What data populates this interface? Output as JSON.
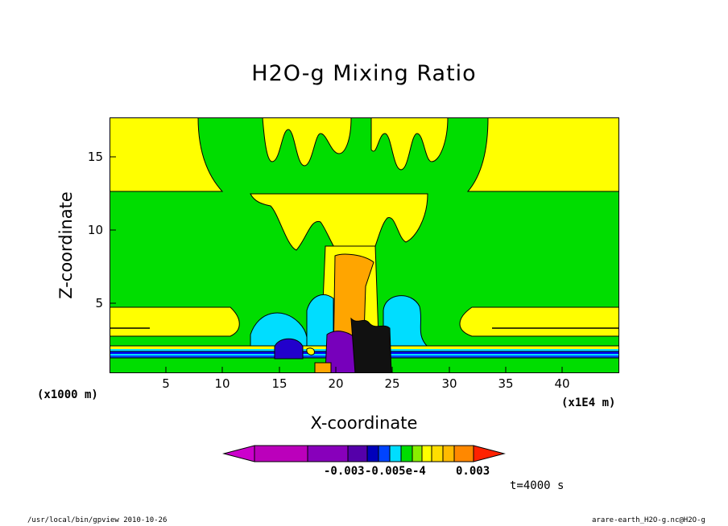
{
  "chart_data": {
    "type": "heatmap",
    "title": "H2O-g Mixing Ratio",
    "xlabel": "X-coordinate",
    "ylabel": "Z-coordinate",
    "x_unit": "(x1E4 m)",
    "y_unit": "(x1000 m)",
    "x_ticks": [
      5,
      10,
      15,
      20,
      25,
      30,
      35,
      40
    ],
    "y_ticks": [
      5,
      10,
      15
    ],
    "xlim": [
      0,
      45
    ],
    "ylim": [
      0.3,
      17.6
    ],
    "colorbar_labels": [
      "-0.003",
      "-0.005e-4",
      "0.003"
    ],
    "time_label": "t=4000 s"
  },
  "colors": {
    "green": "#00dd00",
    "yellow": "#ffff00",
    "orange": "#ffa500",
    "cyan": "#00ddff",
    "blue": "#0000ff",
    "purple": "#7700bb",
    "magenta": "#cc00cc",
    "red": "#ff2200"
  },
  "footer": {
    "left": "/usr/local/bin/gpview  2010-10-26",
    "right": "arare-earth_H2O-g.nc@H2O-g"
  }
}
